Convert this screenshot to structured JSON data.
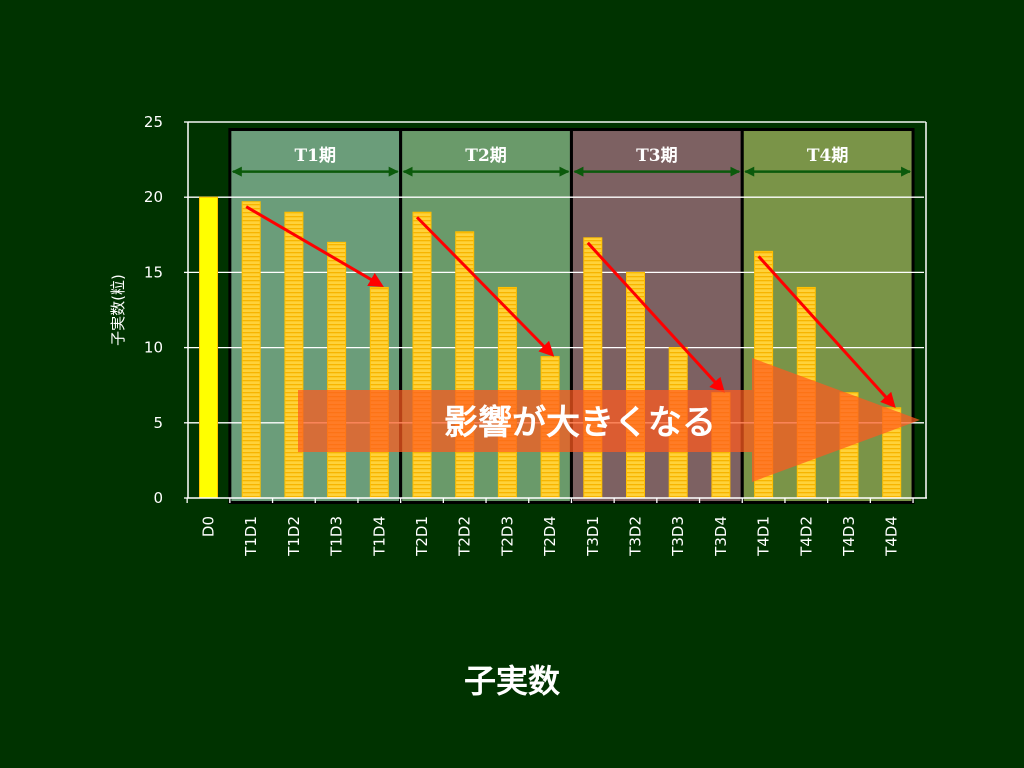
{
  "page": {
    "title": "子実数"
  },
  "colors": {
    "background": "#003300",
    "bar": "#ffc000",
    "bar_d0": "#ffff00",
    "trend_arrow": "#ff0000",
    "callout_arrow": "#ff5a1e",
    "period_colors": [
      "#6b9d7a",
      "#6a9a6a",
      "#7d6162",
      "#7a9448"
    ]
  },
  "chart_data": {
    "type": "bar",
    "ylabel": "子実数(粒)",
    "ylim": [
      0,
      25
    ],
    "yticks": [
      0,
      5,
      10,
      15,
      20,
      25
    ],
    "grid": true,
    "categories": [
      "D0",
      "T1D1",
      "T1D2",
      "T1D3",
      "T1D4",
      "T2D1",
      "T2D2",
      "T2D3",
      "T2D4",
      "T3D1",
      "T3D2",
      "T3D3",
      "T3D4",
      "T4D1",
      "T4D2",
      "T4D3",
      "T4D4"
    ],
    "values": [
      20,
      19.7,
      19,
      17,
      14,
      19,
      17.7,
      14,
      9.4,
      17.3,
      15,
      10,
      7,
      16.4,
      14,
      7,
      6
    ],
    "periods": [
      {
        "label": "T1期",
        "start": 1,
        "end": 4
      },
      {
        "label": "T2期",
        "start": 5,
        "end": 8
      },
      {
        "label": "T3期",
        "start": 9,
        "end": 12
      },
      {
        "label": "T4期",
        "start": 13,
        "end": 16
      }
    ],
    "annotation": "影響が大きくなる"
  }
}
